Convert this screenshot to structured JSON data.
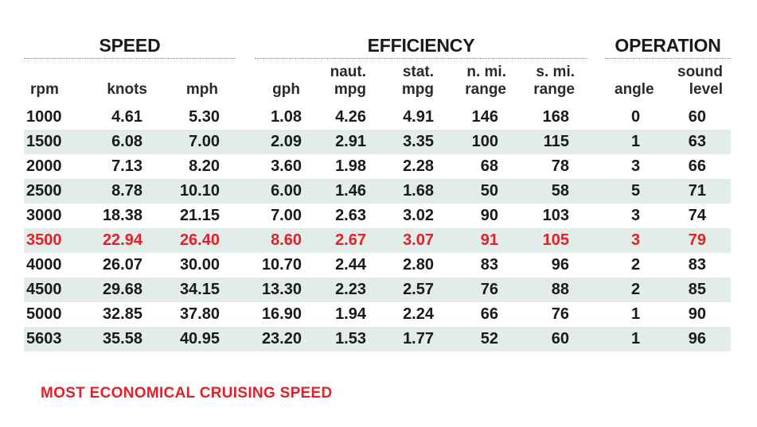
{
  "groups": {
    "speed": "SPEED",
    "efficiency": "EFFICIENCY",
    "operation": "OPERATION"
  },
  "headers": {
    "rpm": [
      "rpm"
    ],
    "knots": [
      "knots"
    ],
    "mph": [
      "mph"
    ],
    "gph": [
      "gph"
    ],
    "naut_mpg": [
      "naut.",
      "mpg"
    ],
    "stat_mpg": [
      "stat.",
      "mpg"
    ],
    "n_mi_range": [
      "n. mi.",
      "range"
    ],
    "s_mi_range": [
      "s. mi.",
      "range"
    ],
    "angle": [
      "angle"
    ],
    "sound_level": [
      "sound",
      "level"
    ]
  },
  "rows": [
    {
      "rpm": "1000",
      "knots": "4.61",
      "mph": "5.30",
      "gph": "1.08",
      "naut_mpg": "4.26",
      "stat_mpg": "4.91",
      "n_mi_range": "146",
      "s_mi_range": "168",
      "angle": "0",
      "sound_level": "60"
    },
    {
      "rpm": "1500",
      "knots": "6.08",
      "mph": "7.00",
      "gph": "2.09",
      "naut_mpg": "2.91",
      "stat_mpg": "3.35",
      "n_mi_range": "100",
      "s_mi_range": "115",
      "angle": "1",
      "sound_level": "63"
    },
    {
      "rpm": "2000",
      "knots": "7.13",
      "mph": "8.20",
      "gph": "3.60",
      "naut_mpg": "1.98",
      "stat_mpg": "2.28",
      "n_mi_range": "68",
      "s_mi_range": "78",
      "angle": "3",
      "sound_level": "66"
    },
    {
      "rpm": "2500",
      "knots": "8.78",
      "mph": "10.10",
      "gph": "6.00",
      "naut_mpg": "1.46",
      "stat_mpg": "1.68",
      "n_mi_range": "50",
      "s_mi_range": "58",
      "angle": "5",
      "sound_level": "71"
    },
    {
      "rpm": "3000",
      "knots": "18.38",
      "mph": "21.15",
      "gph": "7.00",
      "naut_mpg": "2.63",
      "stat_mpg": "3.02",
      "n_mi_range": "90",
      "s_mi_range": "103",
      "angle": "3",
      "sound_level": "74"
    },
    {
      "rpm": "3500",
      "knots": "22.94",
      "mph": "26.40",
      "gph": "8.60",
      "naut_mpg": "2.67",
      "stat_mpg": "3.07",
      "n_mi_range": "91",
      "s_mi_range": "105",
      "angle": "3",
      "sound_level": "79",
      "highlight": true
    },
    {
      "rpm": "4000",
      "knots": "26.07",
      "mph": "30.00",
      "gph": "10.70",
      "naut_mpg": "2.44",
      "stat_mpg": "2.80",
      "n_mi_range": "83",
      "s_mi_range": "96",
      "angle": "2",
      "sound_level": "83"
    },
    {
      "rpm": "4500",
      "knots": "29.68",
      "mph": "34.15",
      "gph": "13.30",
      "naut_mpg": "2.23",
      "stat_mpg": "2.57",
      "n_mi_range": "76",
      "s_mi_range": "88",
      "angle": "2",
      "sound_level": "85"
    },
    {
      "rpm": "5000",
      "knots": "32.85",
      "mph": "37.80",
      "gph": "16.90",
      "naut_mpg": "1.94",
      "stat_mpg": "2.24",
      "n_mi_range": "66",
      "s_mi_range": "76",
      "angle": "1",
      "sound_level": "90"
    },
    {
      "rpm": "5603",
      "knots": "35.58",
      "mph": "40.95",
      "gph": "23.20",
      "naut_mpg": "1.53",
      "stat_mpg": "1.77",
      "n_mi_range": "52",
      "s_mi_range": "60",
      "angle": "1",
      "sound_level": "96"
    }
  ],
  "footnote": "MOST ECONOMICAL CRUISING SPEED",
  "colors": {
    "highlight": "#e3202a",
    "row_shade": "#e2ede9"
  }
}
